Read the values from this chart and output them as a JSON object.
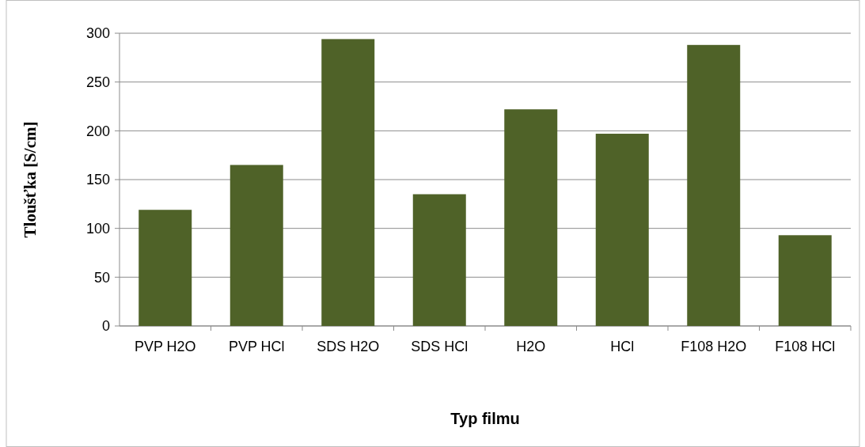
{
  "chart_data": {
    "type": "bar",
    "xlabel": "Typ filmu",
    "ylabel": "Tloušťka [S/cm]",
    "categories": [
      "PVP H2O",
      "PVP HCl",
      "SDS H2O",
      "SDS HCl",
      "H2O",
      "HCl",
      "F108 H2O",
      "F108 HCl"
    ],
    "values": [
      119,
      165,
      294,
      135,
      222,
      197,
      288,
      93
    ],
    "color": "#4f6228",
    "ylim": [
      0,
      300
    ],
    "yticks": [
      0,
      50,
      100,
      150,
      200,
      250,
      300
    ],
    "grid": "y"
  }
}
